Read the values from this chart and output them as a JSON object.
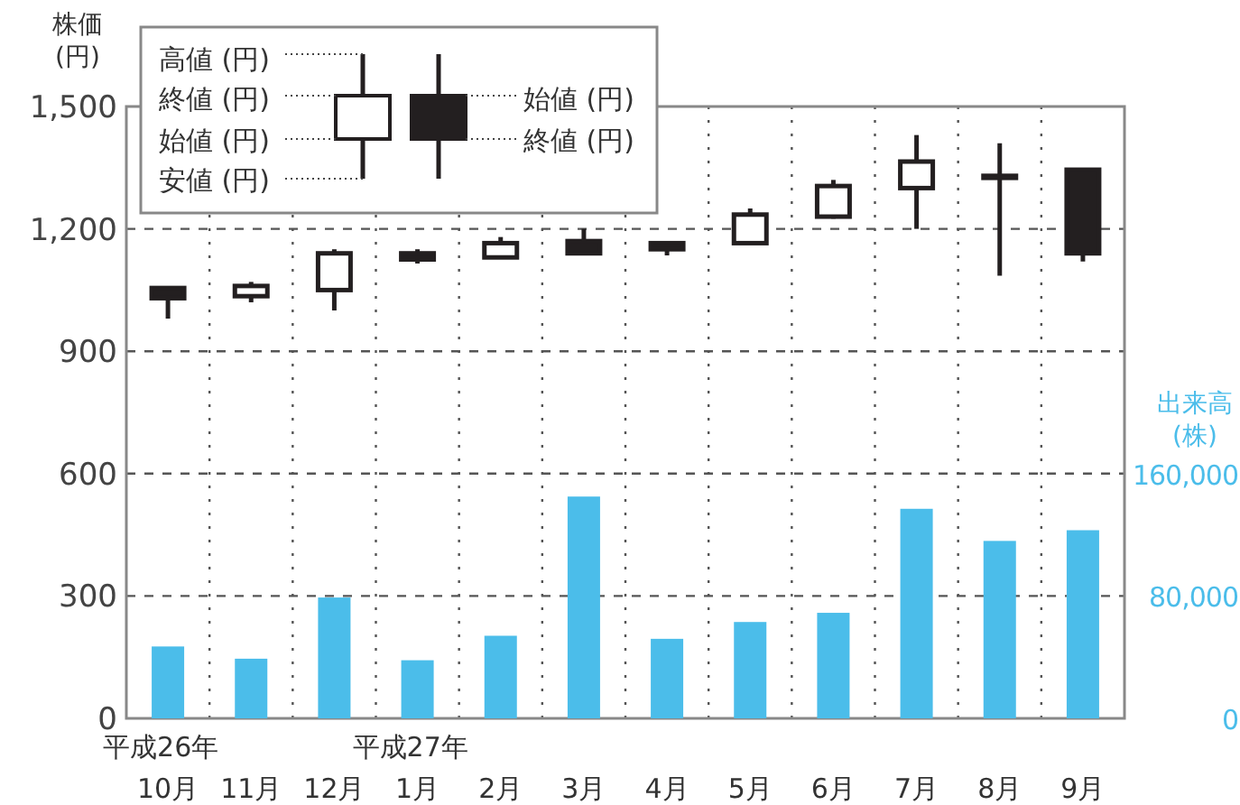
{
  "chart_data": {
    "type": "candlestick",
    "categories": [
      "10月",
      "11月",
      "12月",
      "1月",
      "2月",
      "3月",
      "4月",
      "5月",
      "6月",
      "7月",
      "8月",
      "9月"
    ],
    "series": [
      {
        "ohlc": [
          [
            1055,
            1055,
            980,
            1030
          ],
          [
            1035,
            1070,
            1020,
            1060
          ],
          [
            1050,
            1150,
            1000,
            1140
          ],
          [
            1140,
            1150,
            1115,
            1125
          ],
          [
            1130,
            1180,
            1130,
            1165
          ],
          [
            1170,
            1200,
            1140,
            1140
          ],
          [
            1165,
            1165,
            1135,
            1150
          ],
          [
            1165,
            1250,
            1165,
            1235
          ],
          [
            1230,
            1320,
            1225,
            1305
          ],
          [
            1300,
            1430,
            1200,
            1365
          ],
          [
            1330,
            1410,
            1085,
            1325
          ],
          [
            1345,
            1345,
            1120,
            1140
          ]
        ]
      },
      {
        "type": "bar",
        "axis": "y2",
        "color": "#4bbdea",
        "values": [
          47000,
          39000,
          79000,
          38000,
          54000,
          145000,
          52000,
          63000,
          69000,
          137000,
          116000,
          123000
        ]
      }
    ],
    "ylabel": "株価\n(円)",
    "y2label": "出来高\n(株)",
    "ylim": [
      0,
      1500
    ],
    "yticks": [
      0,
      300,
      600,
      900,
      {
        "value": 1200,
        "label": "1,200"
      },
      {
        "value": 1500,
        "label": "1,500"
      }
    ],
    "y2lim": [
      0,
      400000
    ],
    "y2ticks": [
      0,
      {
        "value": 80000,
        "label": "80,000"
      },
      {
        "value": 160000,
        "label": "160,000"
      }
    ],
    "grid": true,
    "annotations": [
      "平成26年",
      "平成27年",
      "高値 (円)",
      "終値 (円)",
      "始値 (円)",
      "安値 (円)",
      "始値 (円)",
      "終値 (円)"
    ]
  }
}
